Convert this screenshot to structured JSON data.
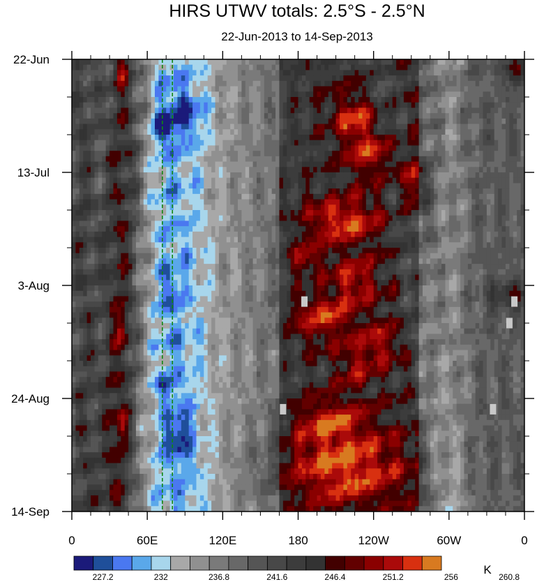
{
  "chart_data": {
    "type": "heatmap",
    "title": "HIRS UTWV totals: 2.5°S - 2.5°N",
    "subtitle": "22-Jun-2013 to 14-Sep-2013",
    "x_ticks": [
      "0",
      "60E",
      "120E",
      "180",
      "120W",
      "60W",
      "0"
    ],
    "x_tick_longitudes": [
      0,
      60,
      120,
      180,
      240,
      300,
      360
    ],
    "xlim": [
      0,
      360
    ],
    "y_ticks": [
      "22-Jun",
      "13-Jul",
      "3-Aug",
      "24-Aug",
      "14-Sep"
    ],
    "y_tick_days": [
      0,
      21,
      42,
      63,
      84
    ],
    "ylim": [
      0,
      84
    ],
    "y_direction": "time increases downward",
    "colorbar": {
      "unit": "K",
      "tick_labels": [
        "227.2",
        "232",
        "236.8",
        "241.6",
        "246.4",
        "251.2",
        "256",
        "260.8"
      ],
      "levels": [
        226,
        227.2,
        228.4,
        229.6,
        230.8,
        232,
        233.2,
        234.4,
        235.6,
        236.8,
        238,
        239.2,
        240.4,
        241.6,
        242.8,
        244,
        245.2,
        246.4,
        247.6,
        248.8,
        250,
        251.2,
        252.4,
        253.6,
        254.8,
        256,
        257.2,
        258.4,
        259.6,
        260.8,
        262
      ],
      "colors": [
        "#1b1a7a",
        "#1f4f9a",
        "#4a78f0",
        "#5aa8ea",
        "#a8d6ec",
        "#a8a8a8",
        "#909090",
        "#7a7a7a",
        "#686868",
        "#555555",
        "#484848",
        "#3c3c3c",
        "#333333",
        "#420000",
        "#620000",
        "#8a0000",
        "#aa0a0a",
        "#d83010",
        "#d87a20"
      ]
    },
    "reference_lines": [
      {
        "longitude": 72,
        "style": "dashed",
        "color": "#118811"
      },
      {
        "longitude": 80,
        "style": "dashed",
        "color": "#118811"
      }
    ],
    "missing_data_boxes": [
      {
        "longitude": 185,
        "day": 45
      },
      {
        "longitude": 168,
        "day": 65
      },
      {
        "longitude": 352,
        "day": 45
      },
      {
        "longitude": 348,
        "day": 49
      },
      {
        "longitude": 335,
        "day": 65
      }
    ],
    "features": [
      {
        "kind": "dry_band",
        "lon0": 43,
        "lon_slope": -0.08,
        "width": 11,
        "strength": 9
      },
      {
        "kind": "dry_band",
        "lon0": 8,
        "lon_slope": 0.02,
        "width": 7,
        "strength": 4
      },
      {
        "kind": "moist_band",
        "lon0": 75,
        "lon_slope": 0.05,
        "width": 22,
        "strength": 7
      },
      {
        "kind": "moist_band",
        "lon0": 110,
        "lon_slope": 0,
        "width": 40,
        "strength": 5
      },
      {
        "kind": "moist_band",
        "lon0": 300,
        "lon_slope": 0.05,
        "width": 10,
        "strength": 4
      },
      {
        "kind": "moist_band",
        "lon0": 245,
        "lon_slope": 0.65,
        "width": 9,
        "strength": 3
      },
      {
        "kind": "dry_region",
        "lon_min": 165,
        "lon_max": 275,
        "strength": 6
      },
      {
        "kind": "dry_spot",
        "lon": 225,
        "day": 11,
        "dlon": 12,
        "dday": 3,
        "strength": 9
      },
      {
        "kind": "dry_spot",
        "lon": 240,
        "day": 18,
        "dlon": 15,
        "dday": 3,
        "strength": 8
      },
      {
        "kind": "dry_spot",
        "lon": 272,
        "day": 23,
        "dlon": 8,
        "dday": 3,
        "strength": 9
      },
      {
        "kind": "dry_spot",
        "lon": 215,
        "day": 30,
        "dlon": 22,
        "dday": 3,
        "strength": 10
      },
      {
        "kind": "dry_spot",
        "lon": 185,
        "day": 37,
        "dlon": 10,
        "dday": 2,
        "strength": 7
      },
      {
        "kind": "dry_spot",
        "lon": 225,
        "day": 41,
        "dlon": 13,
        "dday": 3,
        "strength": 8
      },
      {
        "kind": "dry_spot",
        "lon": 200,
        "day": 48,
        "dlon": 18,
        "dday": 3,
        "strength": 9
      },
      {
        "kind": "dry_spot",
        "lon": 245,
        "day": 53,
        "dlon": 10,
        "dday": 3,
        "strength": 7
      },
      {
        "kind": "dry_spot",
        "lon": 225,
        "day": 57,
        "dlon": 10,
        "dday": 3,
        "strength": 6
      },
      {
        "kind": "dry_spot",
        "lon": 205,
        "day": 67,
        "dlon": 20,
        "dday": 3,
        "strength": 8
      },
      {
        "kind": "dry_spot",
        "lon": 215,
        "day": 76,
        "dlon": 35,
        "dday": 5,
        "strength": 11
      },
      {
        "kind": "dry_spot",
        "lon": 40,
        "day": 2,
        "dlon": 3,
        "dday": 2,
        "strength": 8
      },
      {
        "kind": "dry_spot",
        "lon": 40,
        "day": 50,
        "dlon": 3,
        "dday": 2,
        "strength": 8
      },
      {
        "kind": "dry_spot",
        "lon": 40,
        "day": 68,
        "dlon": 3,
        "dday": 2,
        "strength": 8
      },
      {
        "kind": "dry_spot",
        "lon": 352,
        "day": 2,
        "dlon": 5,
        "dday": 2,
        "strength": 10
      },
      {
        "kind": "dry_spot",
        "lon": 348,
        "day": 44,
        "dlon": 12,
        "dday": 2,
        "strength": 7
      },
      {
        "kind": "moist_spot",
        "lon": 90,
        "day": 10,
        "dlon": 12,
        "dday": 3,
        "strength": 6
      },
      {
        "kind": "moist_spot",
        "lon": 72,
        "day": 13,
        "dlon": 5,
        "dday": 2,
        "strength": 7
      },
      {
        "kind": "moist_spot",
        "lon": 85,
        "day": 70,
        "dlon": 7,
        "dday": 3,
        "strength": 6
      },
      {
        "kind": "moist_spot",
        "lon": 72,
        "day": 61,
        "dlon": 4,
        "dday": 2,
        "strength": 5
      },
      {
        "kind": "moist_spot",
        "lon": 78,
        "day": 43,
        "dlon": 5,
        "dday": 3,
        "strength": 4
      }
    ],
    "grid": false,
    "legend": "colorbar at bottom"
  }
}
